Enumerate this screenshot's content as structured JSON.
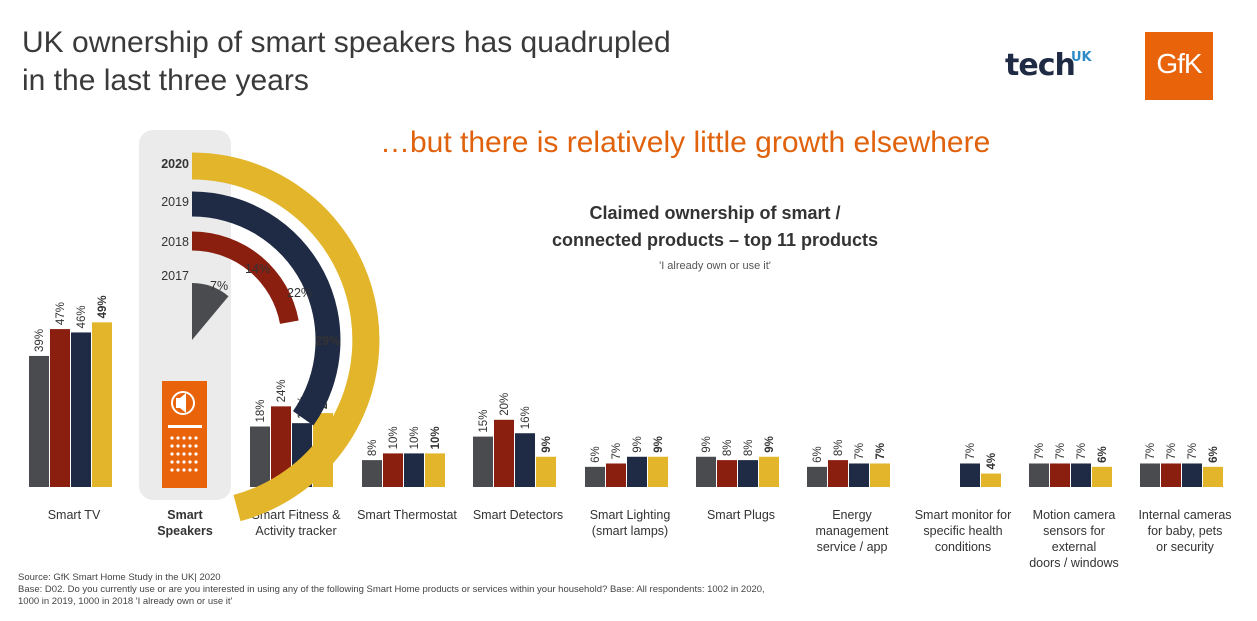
{
  "header": {
    "title_line1": "UK ownership of smart speakers has quadrupled",
    "title_line2": "in the last three years",
    "subtitle": "…but there is relatively  little growth elsewhere"
  },
  "logos": {
    "tech": "tech",
    "tech_sup": "UK",
    "gfk": "GfK"
  },
  "colors": {
    "2017": "#4a4b4f",
    "2018": "#8b1f0f",
    "2019": "#1f2a44",
    "2020": "#e3b52a",
    "highlight_panel": "#ebebeb",
    "speaker_icon": "#e8630a"
  },
  "chart_data": {
    "type": "bar",
    "title": "Claimed ownership of smart / connected products – top 11 products",
    "title_line1": "Claimed ownership of smart /",
    "title_line2": "connected products – top 11 products",
    "note": "'I already own or use it'",
    "years": [
      "2017",
      "2018",
      "2019",
      "2020"
    ],
    "categories": [
      {
        "label": [
          "Smart TV"
        ],
        "values": [
          39,
          47,
          46,
          49
        ]
      },
      {
        "label": [
          "Smart",
          "Speakers"
        ],
        "values": [
          7,
          14,
          22,
          29
        ],
        "highlight": true
      },
      {
        "label": [
          "Smart Fitness &",
          "Activity tracker"
        ],
        "values": [
          18,
          24,
          19,
          22
        ]
      },
      {
        "label": [
          "Smart Thermostat"
        ],
        "values": [
          8,
          10,
          10,
          10
        ]
      },
      {
        "label": [
          "Smart Detectors"
        ],
        "values": [
          15,
          20,
          16,
          9
        ]
      },
      {
        "label": [
          "Smart Lighting",
          "(smart lamps)"
        ],
        "values": [
          6,
          7,
          9,
          9
        ]
      },
      {
        "label": [
          "Smart Plugs"
        ],
        "values": [
          9,
          8,
          8,
          9
        ]
      },
      {
        "label": [
          "Energy",
          "management",
          "service / app"
        ],
        "values": [
          6,
          8,
          7,
          7
        ]
      },
      {
        "label": [
          "Smart monitor for",
          "specific health",
          "conditions"
        ],
        "values": [
          null,
          null,
          7,
          4
        ]
      },
      {
        "label": [
          "Motion camera",
          "sensors for",
          "external",
          "doors / windows"
        ],
        "values": [
          7,
          7,
          7,
          6
        ]
      },
      {
        "label": [
          "Internal cameras",
          "for baby, pets",
          "or security"
        ],
        "values": [
          7,
          7,
          7,
          6
        ]
      }
    ]
  },
  "source": {
    "line1": "Source: GfK Smart Home Study in the UK| 2020",
    "line2": "Base: D02. Do you currently use or are you interested in using any of the following Smart Home products or services within your household? Base: All respondents: 1002 in 2020,",
    "line3": "1000 in 2019, 1000  in 2018 'I already own or use it'"
  }
}
